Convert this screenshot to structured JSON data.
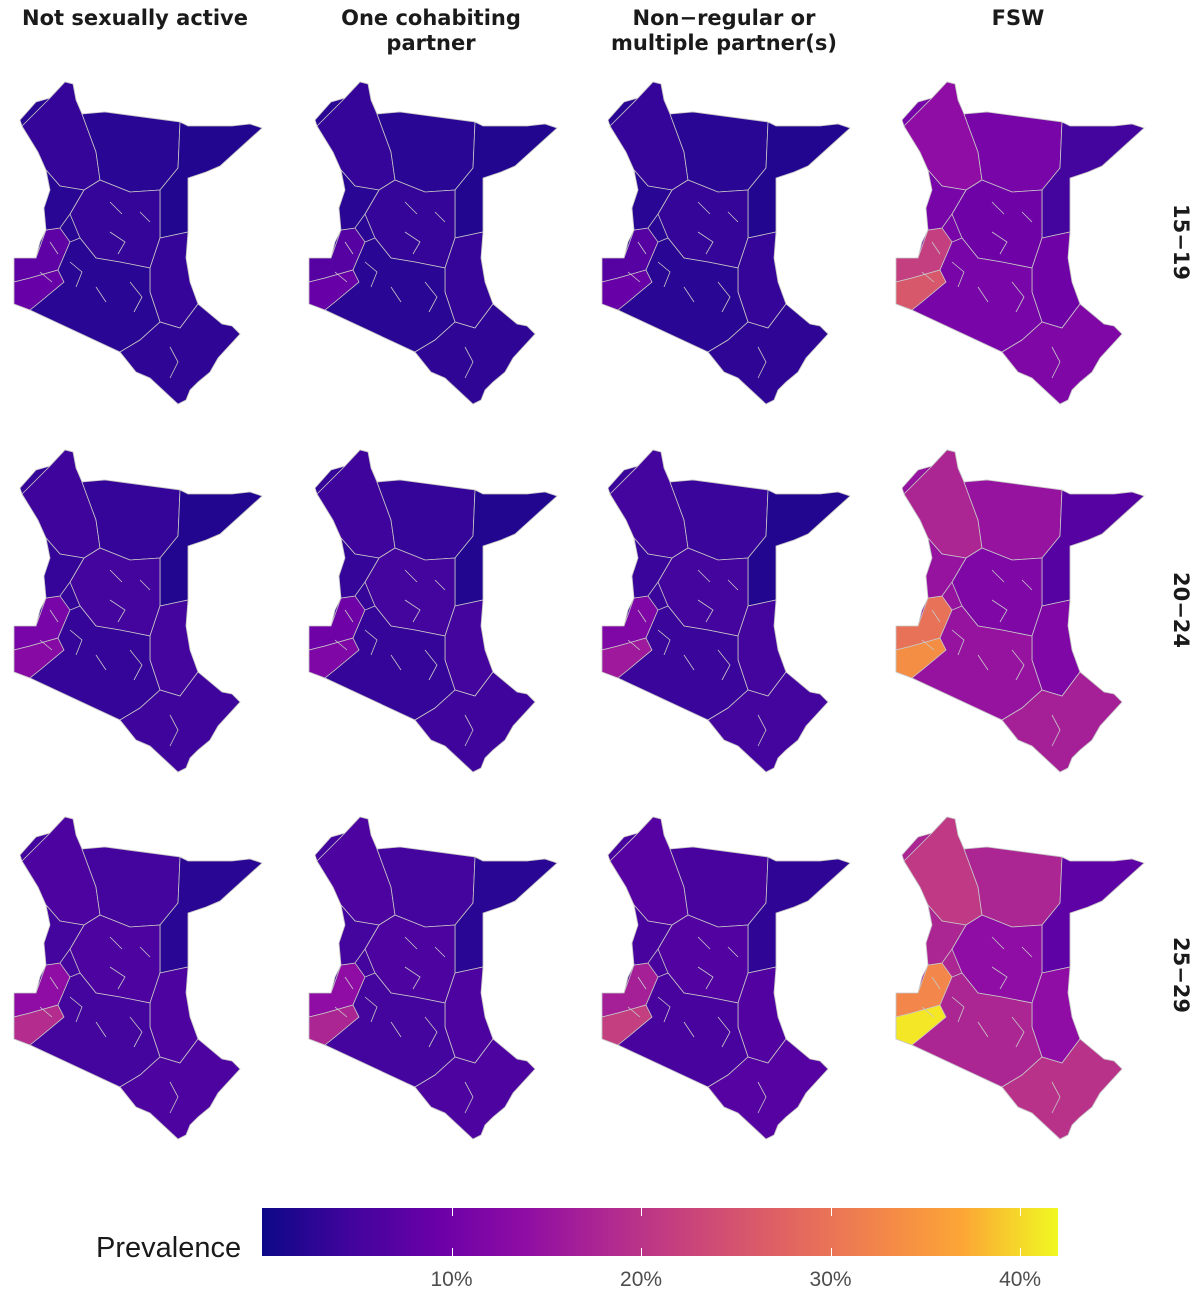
{
  "figure": {
    "panel_titles": [
      [
        "Not sexually active"
      ],
      [
        "One cohabiting",
        "partner"
      ],
      [
        "Non−regular or",
        "multiple partner(s)"
      ],
      [
        "FSW"
      ]
    ],
    "row_labels": [
      "15−19",
      "20−24",
      "25−29"
    ],
    "legend": {
      "title": "Prevalence",
      "tick_labels": [
        "10%",
        "20%",
        "30%",
        "40%"
      ],
      "tick_values": [
        10,
        20,
        30,
        40
      ],
      "range": [
        0,
        42
      ],
      "colormap": "plasma",
      "colormap_stops": [
        "#0d0887",
        "#41049d",
        "#6a00a8",
        "#8f0da4",
        "#b12a90",
        "#cc4778",
        "#e16462",
        "#f2844b",
        "#fca636",
        "#f0f921"
      ]
    },
    "region_border_color": "#c8c8c8",
    "panels": [
      {
        "row": 0,
        "col": 0,
        "base": 2.5,
        "northwest": 3.5,
        "centre": 3.5,
        "east": 2,
        "coast": 3,
        "west_high": 8,
        "west_hot": 9
      },
      {
        "row": 0,
        "col": 1,
        "base": 2.5,
        "northwest": 3.5,
        "centre": 3.5,
        "east": 2,
        "coast": 3,
        "west_high": 7,
        "west_hot": 9
      },
      {
        "row": 0,
        "col": 2,
        "base": 2.5,
        "northwest": 3.5,
        "centre": 3.5,
        "east": 2,
        "coast": 3,
        "west_high": 7,
        "west_hot": 9
      },
      {
        "row": 0,
        "col": 3,
        "base": 11,
        "northwest": 14,
        "centre": 10,
        "east": 5,
        "coast": 12,
        "west_high": 22,
        "west_hot": 26
      },
      {
        "row": 1,
        "col": 0,
        "base": 3.5,
        "northwest": 4.5,
        "centre": 5,
        "east": 2,
        "coast": 4.5,
        "west_high": 11,
        "west_hot": 13
      },
      {
        "row": 1,
        "col": 1,
        "base": 3.5,
        "northwest": 4.5,
        "centre": 5,
        "east": 2,
        "coast": 4.5,
        "west_high": 10,
        "west_hot": 12
      },
      {
        "row": 1,
        "col": 2,
        "base": 4,
        "northwest": 5,
        "centre": 5,
        "east": 2,
        "coast": 5,
        "west_high": 12,
        "west_hot": 16
      },
      {
        "row": 1,
        "col": 3,
        "base": 15,
        "northwest": 18,
        "centre": 12,
        "east": 7,
        "coast": 17,
        "west_high": 30,
        "west_hot": 34
      },
      {
        "row": 2,
        "col": 0,
        "base": 5,
        "northwest": 6,
        "centre": 6,
        "east": 2.5,
        "coast": 6,
        "west_high": 14,
        "west_hot": 19
      },
      {
        "row": 2,
        "col": 1,
        "base": 5,
        "northwest": 6,
        "centre": 6,
        "east": 2.5,
        "coast": 6,
        "west_high": 14,
        "west_hot": 18
      },
      {
        "row": 2,
        "col": 2,
        "base": 5.5,
        "northwest": 7,
        "centre": 6.5,
        "east": 3,
        "coast": 7,
        "west_high": 17,
        "west_hot": 22
      },
      {
        "row": 2,
        "col": 3,
        "base": 18,
        "northwest": 21,
        "centre": 14,
        "east": 8,
        "coast": 20,
        "west_high": 33,
        "west_hot": 41
      }
    ]
  }
}
